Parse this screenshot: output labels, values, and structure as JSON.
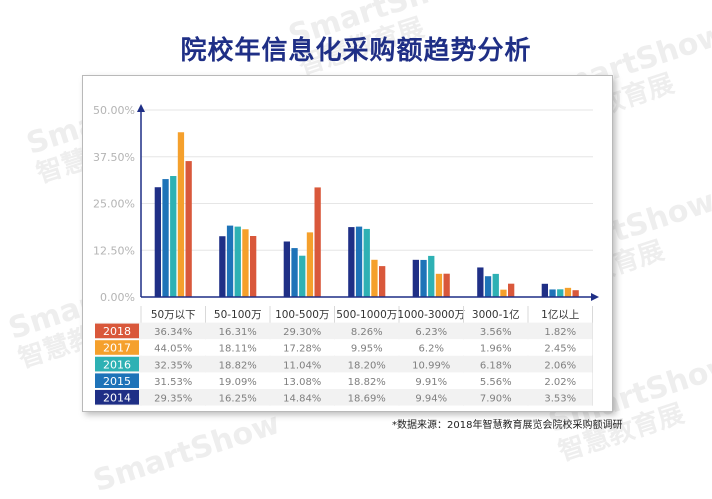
{
  "title": "院校年信息化采购额趋势分析",
  "source_note": "*数据来源：2018年智慧教育展览会院校采购额调研",
  "watermark": {
    "line1": "SmartShow",
    "line2": "智慧教育展"
  },
  "colors": {
    "2018": "#d9583b",
    "2017": "#f5a02c",
    "2016": "#2eb1b4",
    "2015": "#1e73b8",
    "2014": "#1f2f86",
    "title": "#1f2f86"
  },
  "chart_data": {
    "type": "bar",
    "categories": [
      "50万以下",
      "50-100万",
      "100-500万",
      "500-1000万",
      "1000-3000万",
      "3000-1亿",
      "1亿以上"
    ],
    "yticks": [
      "0.00%",
      "12.50%",
      "25.00%",
      "37.50%",
      "50.00%"
    ],
    "ylim": [
      0,
      50
    ],
    "series": [
      {
        "name": "2014",
        "values": [
          29.35,
          16.25,
          14.84,
          18.69,
          9.94,
          7.9,
          3.53
        ],
        "labels": [
          "29.35%",
          "16.25%",
          "14.84%",
          "18.69%",
          "9.94%",
          "7.90%",
          "3.53%"
        ]
      },
      {
        "name": "2015",
        "values": [
          31.53,
          19.09,
          13.08,
          18.82,
          9.91,
          5.56,
          2.02
        ],
        "labels": [
          "31.53%",
          "19.09%",
          "13.08%",
          "18.82%",
          "9.91%",
          "5.56%",
          "2.02%"
        ]
      },
      {
        "name": "2016",
        "values": [
          32.35,
          18.82,
          11.04,
          18.2,
          10.99,
          6.18,
          2.06
        ],
        "labels": [
          "32.35%",
          "18.82%",
          "11.04%",
          "18.20%",
          "10.99%",
          "6.18%",
          "2.06%"
        ]
      },
      {
        "name": "2017",
        "values": [
          44.05,
          18.11,
          17.28,
          9.95,
          6.2,
          1.96,
          2.45
        ],
        "labels": [
          "44.05%",
          "18.11%",
          "17.28%",
          "9.95%",
          "6.2%",
          "1.96%",
          "2.45%"
        ]
      },
      {
        "name": "2018",
        "values": [
          36.34,
          16.31,
          29.3,
          8.26,
          6.23,
          3.56,
          1.82
        ],
        "labels": [
          "36.34%",
          "16.31%",
          "29.30%",
          "8.26%",
          "6.23%",
          "3.56%",
          "1.82%"
        ]
      }
    ],
    "table_row_order": [
      "2018",
      "2017",
      "2016",
      "2015",
      "2014"
    ]
  }
}
